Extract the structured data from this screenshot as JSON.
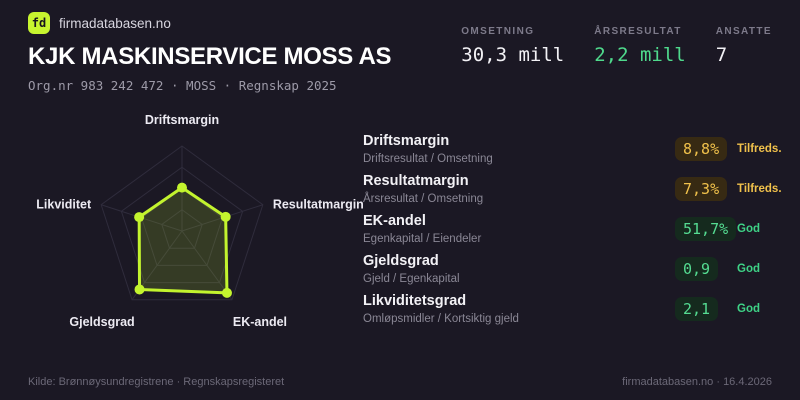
{
  "brand": {
    "logo_text": "fd",
    "site": "firmadatabasen.no"
  },
  "header": {
    "title": "KJK MASKINSERVICE MOSS AS",
    "subtitle": "Org.nr 983 242 472 · MOSS · Regnskap 2025"
  },
  "stats": [
    {
      "label": "OMSETNING",
      "value": "30,3 mill",
      "value_color": "#f2f1f5"
    },
    {
      "label": "ÅRSRESULTAT",
      "value": "2,2 mill",
      "value_color": "#4fd98c"
    },
    {
      "label": "ANSATTE",
      "value": "7",
      "value_color": "#f2f1f5"
    }
  ],
  "chart_data": {
    "type": "radar",
    "axes": [
      "Driftsmargin",
      "Resultatmargin",
      "EK-andel",
      "Gjeldsgrad",
      "Likviditet"
    ],
    "values": [
      0.51,
      0.54,
      0.9,
      0.85,
      0.53
    ],
    "value_source": [
      "8,8%",
      "7,3%",
      "51,7%",
      "0,9",
      "2,1"
    ],
    "max": 1,
    "rings": 4,
    "line_color": "#c3f42e",
    "fill_color": "rgba(195,244,46,0.16)",
    "grid_color": "#2f2c3c",
    "legend": "none"
  },
  "metrics": [
    {
      "name": "Driftsmargin",
      "formula": "Driftsresultat / Omsetning",
      "value": "8,8%",
      "status": "Tilfreds.",
      "tone": "warn"
    },
    {
      "name": "Resultatmargin",
      "formula": "Årsresultat / Omsetning",
      "value": "7,3%",
      "status": "Tilfreds.",
      "tone": "warn"
    },
    {
      "name": "EK-andel",
      "formula": "Egenkapital / Eiendeler",
      "value": "51,7%",
      "status": "God",
      "tone": "good"
    },
    {
      "name": "Gjeldsgrad",
      "formula": "Gjeld / Egenkapital",
      "value": "0,9",
      "status": "God",
      "tone": "good"
    },
    {
      "name": "Likviditetsgrad",
      "formula": "Omløpsmidler / Kortsiktig gjeld",
      "value": "2,1",
      "status": "God",
      "tone": "good"
    }
  ],
  "footer": {
    "left": "Kilde: Brønnøysundregistrene · Regnskapsregisteret",
    "right": "firmadatabasen.no · 16.4.2026"
  },
  "colors": {
    "background": "#1b1824",
    "accent_lime": "#c7f52f",
    "positive_green": "#4fd98c",
    "warning_amber": "#f0c14b",
    "text_primary": "#f2f1f5",
    "text_muted": "#8a8795"
  }
}
